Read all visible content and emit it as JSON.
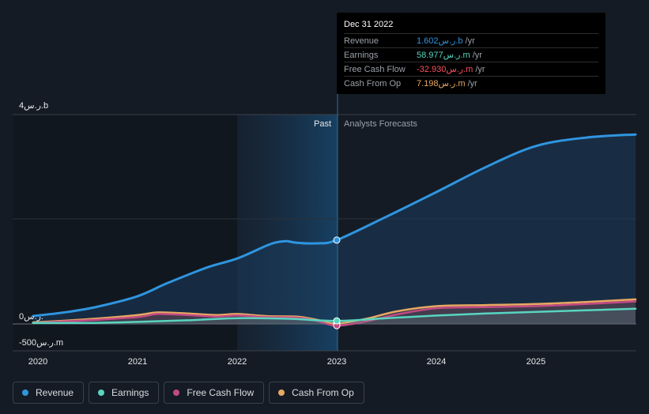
{
  "chart_data": {
    "type": "line",
    "x_ticks": [
      2020,
      2021,
      2022,
      2023,
      2024,
      2025
    ],
    "tick_labels": [
      "2020",
      "2021",
      "2022",
      "2023",
      "2024",
      "2025"
    ],
    "y_labels": {
      "top": "4ر.س.b",
      "zero": "0ر.س.",
      "bottom": "-500ر.س.m"
    },
    "ylim": [
      -500,
      4000
    ],
    "xlim": [
      2020,
      2026
    ],
    "past_label": "Past",
    "forecast_label": "Analysts Forecasts",
    "divider_x": 2023.0,
    "series": [
      {
        "name": "Revenue",
        "color": "#2f95e0",
        "x": [
          2019.95,
          2020.3,
          2020.6,
          2021.0,
          2021.3,
          2021.7,
          2022.0,
          2022.3,
          2022.4,
          2022.5,
          2022.6,
          2022.8,
          2023.0,
          2023.5,
          2024.0,
          2024.5,
          2025.0,
          2025.5,
          2026.0
        ],
        "y": [
          150,
          230,
          330,
          530,
          780,
          1080,
          1250,
          1500,
          1560,
          1580,
          1550,
          1540,
          1602,
          2050,
          2520,
          3000,
          3400,
          3560,
          3620
        ]
      },
      {
        "name": "Earnings",
        "color": "#58d5c0",
        "x": [
          2019.95,
          2020.5,
          2021.0,
          2021.5,
          2022.0,
          2022.5,
          2023.0,
          2023.5,
          2024.0,
          2024.5,
          2025.0,
          2025.5,
          2026.0
        ],
        "y": [
          20,
          20,
          40,
          70,
          110,
          100,
          59,
          110,
          160,
          200,
          230,
          260,
          290
        ]
      },
      {
        "name": "Free Cash Flow",
        "color": "#c24a84",
        "x": [
          2019.95,
          2020.5,
          2021.0,
          2021.2,
          2021.5,
          2021.8,
          2022.0,
          2022.3,
          2022.6,
          2022.8,
          2023.0,
          2023.3,
          2023.6,
          2024.0,
          2024.5,
          2025.0,
          2025.5,
          2026.0
        ],
        "y": [
          20,
          70,
          130,
          190,
          170,
          140,
          160,
          130,
          120,
          60,
          -33,
          50,
          180,
          300,
          320,
          340,
          380,
          430
        ]
      },
      {
        "name": "Cash From Op",
        "color": "#e8a862",
        "x": [
          2019.95,
          2020.5,
          2021.0,
          2021.2,
          2021.5,
          2021.8,
          2022.0,
          2022.3,
          2022.6,
          2022.8,
          2023.0,
          2023.3,
          2023.6,
          2024.0,
          2024.5,
          2025.0,
          2025.5,
          2026.0
        ],
        "y": [
          30,
          90,
          170,
          220,
          200,
          170,
          190,
          150,
          140,
          80,
          7,
          100,
          240,
          340,
          360,
          380,
          420,
          470
        ]
      }
    ]
  },
  "tooltip": {
    "date": "Dec 31 2022",
    "unit": "/yr",
    "rows": [
      {
        "label": "Revenue",
        "value": "1.602ر.س.b",
        "color": "#2f95e0"
      },
      {
        "label": "Earnings",
        "value": "58.977ر.س.m",
        "color": "#58d5c0"
      },
      {
        "label": "Free Cash Flow",
        "value": "-32.930ر.س.m",
        "color": "#ff4f5f"
      },
      {
        "label": "Cash From Op",
        "value": "7.198ر.س.m",
        "color": "#e8a862"
      }
    ]
  },
  "legend": {
    "items": [
      {
        "label": "Revenue",
        "color": "#2f95e0"
      },
      {
        "label": "Earnings",
        "color": "#58d5c0"
      },
      {
        "label": "Free Cash Flow",
        "color": "#c24a84"
      },
      {
        "label": "Cash From Op",
        "color": "#e8a862"
      }
    ]
  }
}
